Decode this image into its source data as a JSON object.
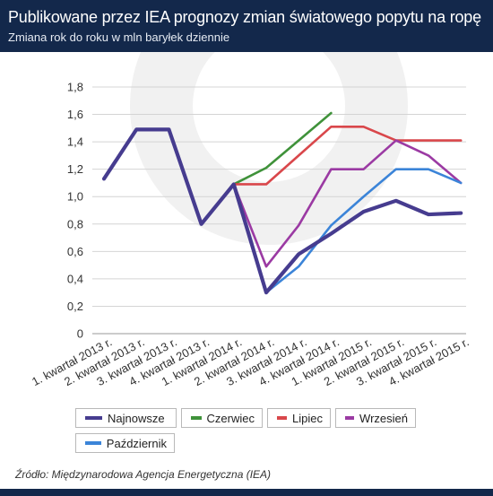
{
  "header": {
    "title": "Publikowane przez IEA prognozy zmian światowego popytu na ropę",
    "subtitle": "Zmiana rok do roku w mln baryłek dziennie"
  },
  "source": "Źródło: Międzynarodowa Agencja Energetyczna (IEA)",
  "colors": {
    "header_bg": "#13284b",
    "Najnowsze": "#463c8f",
    "Czerwiec": "#3f923a",
    "Lipiec": "#d9474b",
    "Wrzesień": "#9b3aa3",
    "Październik": "#3b84d8"
  },
  "chart_data": {
    "type": "line",
    "title": "Publikowane przez IEA prognozy zmian światowego popytu na ropę",
    "subtitle": "Zmiana rok do roku w mln baryłek dziennie",
    "categories": [
      "1. kwartał 2013 r.",
      "2. kwartał 2013 r.",
      "3. kwartał 2013 r.",
      "4. kwartał 2013 r.",
      "1. kwartał 2014 r.",
      "2. kwartał 2014 r.",
      "3. kwartał 2014 r.",
      "4. kwartał 2014 r.",
      "1. kwartał 2015 r.",
      "2. kwartał 2015 r.",
      "3. kwartał 2015 r.",
      "4. kwartał 2015 r."
    ],
    "ylim": [
      0,
      1.8
    ],
    "yticks": [
      "0",
      "0,2",
      "0,4",
      "0,6",
      "0,8",
      "1,0",
      "1,2",
      "1,4",
      "1,6",
      "1,8"
    ],
    "grid": true,
    "legend_position": "bottom",
    "series": [
      {
        "name": "Czerwiec",
        "color": "#3f923a",
        "width": 2.6,
        "values": [
          null,
          null,
          null,
          null,
          1.09,
          1.21,
          1.41,
          1.61,
          null,
          null,
          null,
          null
        ]
      },
      {
        "name": "Lipiec",
        "color": "#d9474b",
        "width": 2.6,
        "values": [
          null,
          null,
          null,
          null,
          1.09,
          1.09,
          1.3,
          1.51,
          1.51,
          1.41,
          1.41,
          1.41
        ]
      },
      {
        "name": "Wrzesień",
        "color": "#9b3aa3",
        "width": 2.6,
        "values": [
          null,
          null,
          null,
          null,
          1.09,
          0.49,
          0.79,
          1.2,
          1.2,
          1.41,
          1.3,
          1.1
        ]
      },
      {
        "name": "Październik",
        "color": "#3b84d8",
        "width": 2.6,
        "values": [
          null,
          null,
          null,
          null,
          null,
          0.3,
          0.49,
          0.79,
          1.0,
          1.2,
          1.2,
          1.1
        ]
      },
      {
        "name": "Najnowsze",
        "color": "#463c8f",
        "width": 4.2,
        "values": [
          1.13,
          1.49,
          1.49,
          0.8,
          1.09,
          0.3,
          0.58,
          0.73,
          0.89,
          0.97,
          0.87,
          0.88
        ]
      }
    ]
  },
  "legend": [
    {
      "label": "Najnowsze",
      "color": "#463c8f"
    },
    {
      "label": "Czerwiec",
      "color": "#3f923a"
    },
    {
      "label": "Lipiec",
      "color": "#d9474b"
    },
    {
      "label": "Wrzesień",
      "color": "#9b3aa3"
    },
    {
      "label": "Październik",
      "color": "#3b84d8"
    }
  ]
}
